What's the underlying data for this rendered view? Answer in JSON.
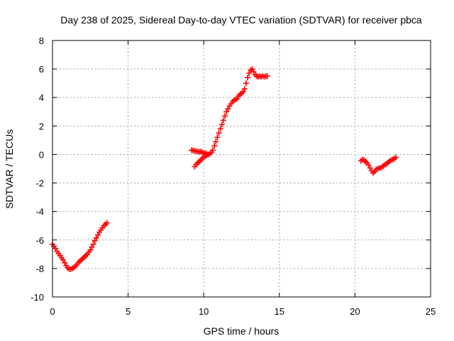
{
  "chart_data": {
    "type": "scatter",
    "title": "Day 238 of 2025, Sidereal Day-to-day VTEC variation (SDTVAR) for receiver pbca",
    "xlabel": "GPS time / hours",
    "ylabel": "SDTVAR / TECUs",
    "xlim": [
      0,
      25
    ],
    "ylim": [
      -10,
      8
    ],
    "xticks": [
      0,
      5,
      10,
      15,
      20,
      25
    ],
    "yticks": [
      -10,
      -8,
      -6,
      -4,
      -2,
      0,
      2,
      4,
      6,
      8
    ],
    "grid": true,
    "marker": "plus",
    "color": "#ff0000",
    "series": [
      {
        "name": "segment-1",
        "x": [
          0.0,
          0.1,
          0.2,
          0.3,
          0.4,
          0.5,
          0.6,
          0.7,
          0.8,
          0.9,
          1.0,
          1.1,
          1.2,
          1.3,
          1.4,
          1.5,
          1.6,
          1.7,
          1.8,
          1.9,
          2.0,
          2.1,
          2.2,
          2.3,
          2.4,
          2.5,
          2.6,
          2.7,
          2.8,
          2.9,
          3.0,
          3.1,
          3.2,
          3.3,
          3.4,
          3.5,
          3.6
        ],
        "y": [
          -6.3,
          -6.45,
          -6.6,
          -6.8,
          -6.95,
          -7.1,
          -7.25,
          -7.4,
          -7.6,
          -7.8,
          -7.95,
          -8.05,
          -8.05,
          -8.0,
          -7.95,
          -7.85,
          -7.75,
          -7.6,
          -7.5,
          -7.4,
          -7.3,
          -7.2,
          -7.1,
          -7.0,
          -6.85,
          -6.7,
          -6.5,
          -6.3,
          -6.05,
          -5.85,
          -5.65,
          -5.45,
          -5.3,
          -5.15,
          -5.0,
          -4.9,
          -4.8
        ]
      },
      {
        "name": "segment-2",
        "x": [
          9.2,
          9.3,
          9.4,
          9.5,
          9.6,
          9.7,
          9.8,
          9.9,
          10.0,
          10.1,
          10.2,
          10.3,
          10.4,
          10.5,
          10.6,
          10.7,
          10.8,
          10.9,
          11.0,
          11.1,
          11.2,
          11.3,
          11.4,
          11.5,
          11.6,
          11.7,
          11.8,
          11.9,
          12.0,
          12.1,
          12.2,
          12.3,
          12.4,
          12.5,
          12.6,
          12.7,
          12.8,
          12.9,
          13.0,
          13.1,
          13.2,
          13.3,
          13.4,
          13.5,
          13.6,
          13.7,
          13.8,
          13.9,
          14.0,
          14.1,
          14.2
        ],
        "y": [
          0.3,
          0.28,
          0.25,
          0.22,
          0.2,
          0.18,
          0.2,
          0.15,
          0.1,
          0.1,
          0.05,
          0.0,
          0.05,
          0.15,
          0.3,
          0.6,
          0.9,
          1.2,
          1.5,
          1.8,
          2.1,
          2.4,
          2.7,
          3.0,
          3.2,
          3.4,
          3.55,
          3.7,
          3.8,
          3.85,
          3.9,
          4.1,
          4.2,
          4.3,
          4.4,
          4.6,
          5.0,
          5.4,
          5.7,
          5.9,
          6.0,
          5.8,
          5.6,
          5.5,
          5.45,
          5.5,
          5.45,
          5.5,
          5.45,
          5.5,
          5.5
        ]
      },
      {
        "name": "segment-2-low-branch",
        "x": [
          9.4,
          9.5,
          9.6,
          9.7,
          9.8,
          9.9,
          10.0,
          10.1,
          10.2,
          10.3
        ],
        "y": [
          -0.85,
          -0.7,
          -0.6,
          -0.5,
          -0.4,
          -0.3,
          -0.2,
          -0.1,
          -0.05,
          0.0
        ]
      },
      {
        "name": "segment-3",
        "x": [
          20.4,
          20.5,
          20.6,
          20.7,
          20.8,
          20.9,
          21.0,
          21.1,
          21.2,
          21.3,
          21.4,
          21.5,
          21.6,
          21.7,
          21.8,
          21.9,
          22.0,
          22.1,
          22.2,
          22.3,
          22.4,
          22.5,
          22.6,
          22.7
        ],
        "y": [
          -0.45,
          -0.35,
          -0.4,
          -0.5,
          -0.6,
          -0.75,
          -0.95,
          -1.15,
          -1.3,
          -1.2,
          -1.05,
          -1.0,
          -0.95,
          -0.95,
          -0.85,
          -0.8,
          -0.7,
          -0.65,
          -0.55,
          -0.45,
          -0.4,
          -0.35,
          -0.3,
          -0.2
        ]
      }
    ]
  }
}
